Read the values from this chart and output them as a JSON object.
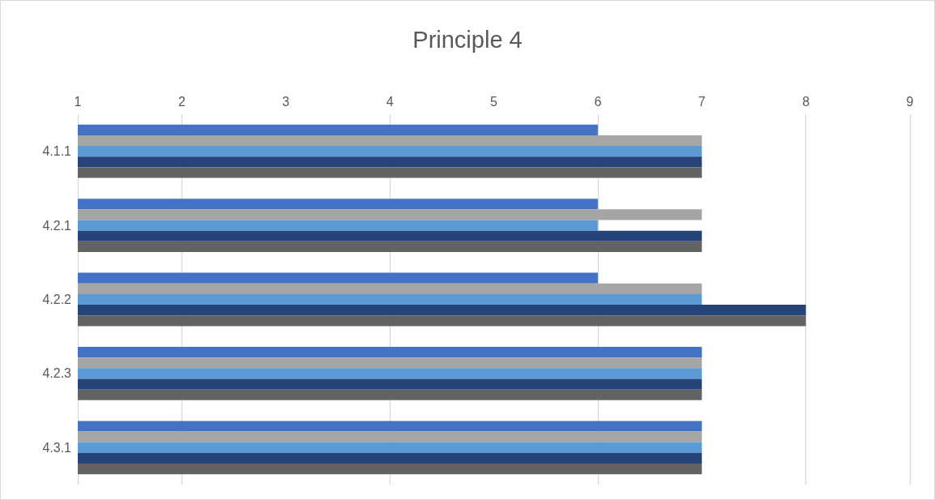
{
  "chart_data": {
    "type": "bar",
    "orientation": "horizontal",
    "title": "Principle 4",
    "categories": [
      "4.1.1",
      "4.2.1",
      "4.2.2",
      "4.2.3",
      "4.3.1"
    ],
    "series": [
      {
        "color": "#4472c4",
        "values": [
          6,
          6,
          6,
          7,
          7
        ]
      },
      {
        "color": "#a5a5a5",
        "values": [
          7,
          7,
          7,
          7,
          7
        ]
      },
      {
        "color": "#5b9bd5",
        "values": [
          7,
          6,
          7,
          7,
          7
        ]
      },
      {
        "color": "#264478",
        "values": [
          7,
          7,
          8,
          7,
          7
        ]
      },
      {
        "color": "#636363",
        "values": [
          7,
          7,
          8,
          7,
          7
        ]
      }
    ],
    "xlim": [
      1,
      9
    ],
    "xticks": [
      1,
      2,
      3,
      4,
      5,
      6,
      7,
      8,
      9
    ],
    "grid": "x"
  }
}
